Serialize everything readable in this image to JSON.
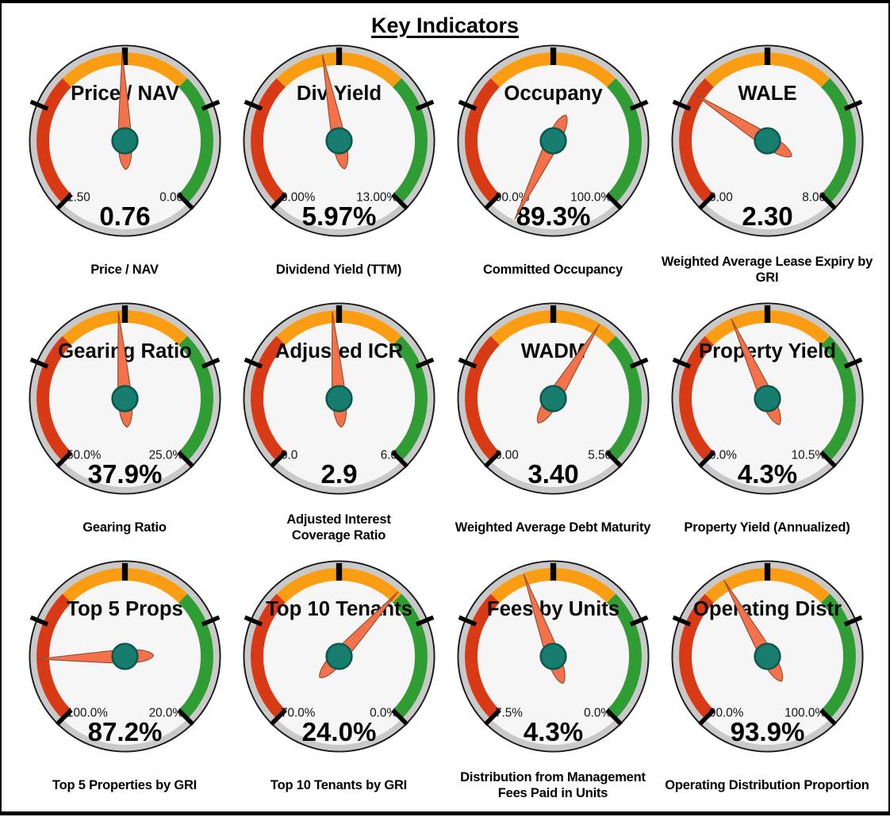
{
  "chart_data": {
    "type": "gauge",
    "title": "Key Indicators",
    "layout": "3 rows x 4 columns of radial gauges",
    "arc_span_degrees": 270,
    "arc_start_deg": -135,
    "arc_end_deg": 135,
    "zones": [
      {
        "color": "red",
        "fraction_start": 0.0,
        "fraction_end": 0.333
      },
      {
        "color": "orange",
        "fraction_start": 0.333,
        "fraction_end": 0.667
      },
      {
        "color": "green",
        "fraction_start": 0.667,
        "fraction_end": 1.0
      }
    ],
    "gauges": [
      {
        "title": "Price / NAV",
        "min": 1.5,
        "max": 0.0,
        "value": 0.76,
        "min_label": "1.50",
        "max_label": "0.00",
        "value_label": "0.76",
        "caption": "Price / NAV"
      },
      {
        "title": "Div Yield",
        "min": 0.0,
        "max": 13.0,
        "value": 5.97,
        "min_label": "0.00%",
        "max_label": "13.00%",
        "value_label": "5.97%",
        "caption": "Dividend Yield (TTM)"
      },
      {
        "title": "Occupany",
        "min": 90.0,
        "max": 100.0,
        "value": 89.3,
        "min_label": "90.0%",
        "max_label": "100.0%",
        "value_label": "89.3%",
        "caption": "Committed Occupancy"
      },
      {
        "title": "WALE",
        "min": 0.0,
        "max": 8.0,
        "value": 2.3,
        "min_label": "0.00",
        "max_label": "8.00",
        "value_label": "2.30",
        "caption": "Weighted Average Lease Expiry by\nGRI"
      },
      {
        "title": "Gearing Ratio",
        "min": 50.0,
        "max": 25.0,
        "value": 37.9,
        "min_label": "50.0%",
        "max_label": "25.0%",
        "value_label": "37.9%",
        "caption": "Gearing Ratio"
      },
      {
        "title": "Adjusted ICR",
        "min": 0.0,
        "max": 6.0,
        "value": 2.9,
        "min_label": "0.0",
        "max_label": "6.0",
        "value_label": "2.9",
        "caption": "Adjusted Interest\nCoverage Ratio"
      },
      {
        "title": "WADM",
        "min": 0.0,
        "max": 5.5,
        "value": 3.4,
        "min_label": "0.00",
        "max_label": "5.50",
        "value_label": "3.40",
        "caption": "Weighted Average Debt Maturity"
      },
      {
        "title": "Property Yield",
        "min": 0.0,
        "max": 10.5,
        "value": 4.3,
        "min_label": "0.0%",
        "max_label": "10.5%",
        "value_label": "4.3%",
        "caption": "Property Yield (Annualized)"
      },
      {
        "title": "Top 5 Props",
        "min": 100.0,
        "max": 20.0,
        "value": 87.2,
        "min_label": "100.0%",
        "max_label": "20.0%",
        "value_label": "87.2%",
        "caption": "Top 5 Properties by GRI"
      },
      {
        "title": "Top 10 Tenants",
        "min": 70.0,
        "max": 0.0,
        "value": 24.0,
        "min_label": "70.0%",
        "max_label": "0.0%",
        "value_label": "24.0%",
        "caption": "Top 10 Tenants by GRI"
      },
      {
        "title": "Fees by Units",
        "min": 7.5,
        "max": 0.0,
        "value": 4.3,
        "min_label": "7.5%",
        "max_label": "0.0%",
        "value_label": "4.3%",
        "caption": "Distribution from Management\nFees Paid in Units"
      },
      {
        "title": "Operating Distr",
        "min": 90.0,
        "max": 100.0,
        "value": 93.9,
        "min_label": "90.0%",
        "max_label": "100.0%",
        "value_label": "93.9%",
        "caption": "Operating Distribution Proportion"
      }
    ]
  },
  "theme": {
    "zone-red": "#D83A16",
    "zone-orange": "#FB9D12",
    "zone-green": "#2F9D33",
    "needle": "#F3724B",
    "needle-outline": "#8F4A2B",
    "hub": "#177D6E",
    "hub-outline": "#0D564C",
    "ring": "#C9C9C9",
    "ring-outline": "#1A1A1A",
    "face": "#F6F6F6",
    "text": "#000000"
  }
}
